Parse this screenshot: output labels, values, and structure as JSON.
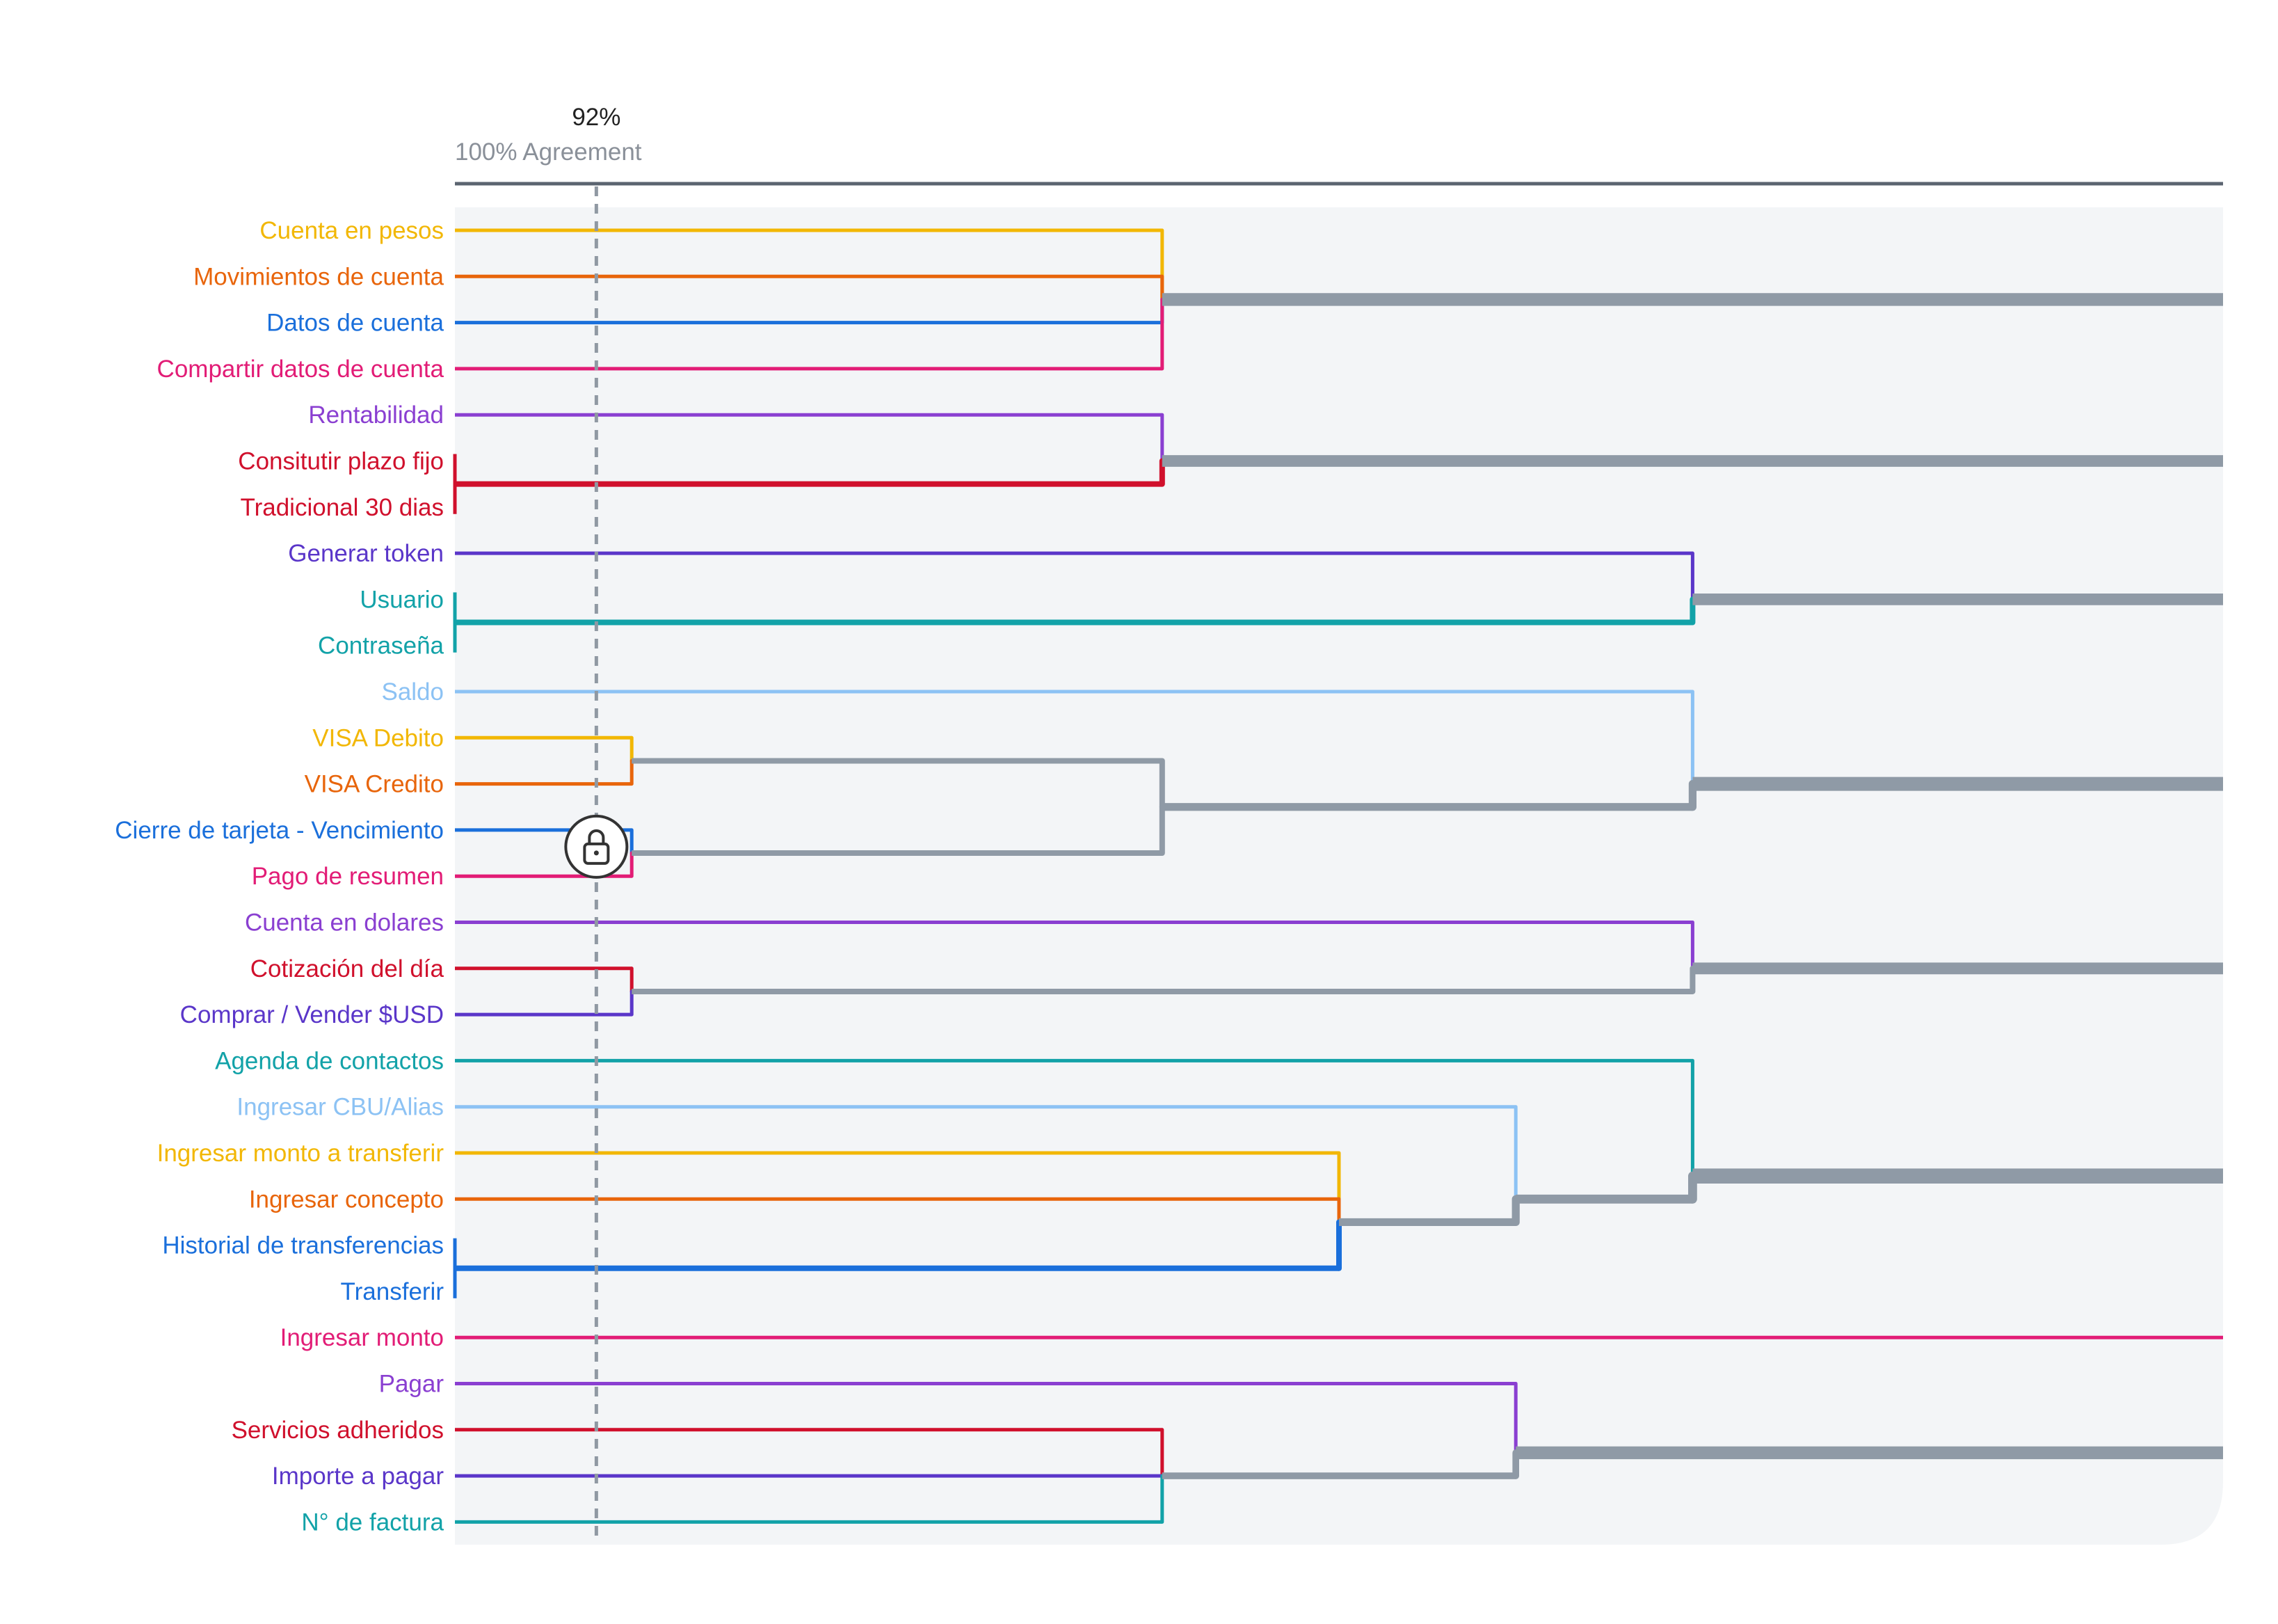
{
  "header": {
    "threshold_label": "92%",
    "axis_label": "100% Agreement"
  },
  "colors": {
    "yellow": "#F2B705",
    "orange": "#E8650B",
    "blue": "#1A6FDB",
    "pink": "#E21C76",
    "purple": "#8A3FD1",
    "red": "#D0102C",
    "indigo": "#5A36C9",
    "teal": "#12A2A8",
    "lightblue": "#8CC2F4",
    "cluster": "#8F9AA6",
    "axis": "#5B6470",
    "panel": "#F3F5F7",
    "threshold": "#9099A3"
  },
  "chart_data": {
    "type": "dendrogram",
    "leaves": [
      {
        "id": "l1",
        "label": "Cuenta en pesos",
        "color": "yellow"
      },
      {
        "id": "l2",
        "label": "Movimientos de cuenta",
        "color": "orange"
      },
      {
        "id": "l3",
        "label": "Datos de cuenta",
        "color": "blue"
      },
      {
        "id": "l4",
        "label": "Compartir datos de cuenta",
        "color": "pink"
      },
      {
        "id": "l5",
        "label": "Rentabilidad",
        "color": "purple"
      },
      {
        "id": "l6",
        "label": "Consitutir plazo fijo",
        "color": "red"
      },
      {
        "id": "l7",
        "label": "Tradicional 30 dias",
        "color": "red"
      },
      {
        "id": "l8",
        "label": "Generar token",
        "color": "indigo"
      },
      {
        "id": "l9",
        "label": "Usuario",
        "color": "teal"
      },
      {
        "id": "l10",
        "label": "Contraseña",
        "color": "teal"
      },
      {
        "id": "l11",
        "label": "Saldo",
        "color": "lightblue"
      },
      {
        "id": "l12",
        "label": "VISA Debito",
        "color": "yellow"
      },
      {
        "id": "l13",
        "label": "VISA Credito",
        "color": "orange"
      },
      {
        "id": "l14",
        "label": "Cierre de tarjeta - Vencimiento",
        "color": "blue"
      },
      {
        "id": "l15",
        "label": "Pago de resumen",
        "color": "pink"
      },
      {
        "id": "l16",
        "label": "Cuenta en dolares",
        "color": "purple"
      },
      {
        "id": "l17",
        "label": "Cotización del día",
        "color": "red"
      },
      {
        "id": "l18",
        "label": "Comprar / Vender $USD",
        "color": "indigo"
      },
      {
        "id": "l19",
        "label": "Agenda de contactos",
        "color": "teal"
      },
      {
        "id": "l20",
        "label": "Ingresar CBU/Alias",
        "color": "lightblue"
      },
      {
        "id": "l21",
        "label": "Ingresar monto a transferir",
        "color": "yellow"
      },
      {
        "id": "l22",
        "label": "Ingresar concepto",
        "color": "orange"
      },
      {
        "id": "l23",
        "label": "Historial de transferencias",
        "color": "blue"
      },
      {
        "id": "l24",
        "label": "Transferir",
        "color": "blue"
      },
      {
        "id": "l25",
        "label": "Ingresar monto",
        "color": "pink"
      },
      {
        "id": "l26",
        "label": "Pagar",
        "color": "purple"
      },
      {
        "id": "l27",
        "label": "Servicios adheridos",
        "color": "red"
      },
      {
        "id": "l28",
        "label": "Importe a pagar",
        "color": "indigo"
      },
      {
        "id": "l29",
        "label": "N° de factura",
        "color": "teal"
      }
    ],
    "clusters": [
      {
        "id": "c1",
        "agreement": 100,
        "children": [
          "l6",
          "l7"
        ]
      },
      {
        "id": "c2",
        "agreement": 100,
        "children": [
          "l9",
          "l10"
        ]
      },
      {
        "id": "c3",
        "agreement": 100,
        "children": [
          "l23",
          "l24"
        ]
      },
      {
        "id": "c4",
        "agreement": 90,
        "children": [
          "l12",
          "l13"
        ]
      },
      {
        "id": "c5",
        "agreement": 90,
        "children": [
          "l14",
          "l15"
        ]
      },
      {
        "id": "c6",
        "agreement": 90,
        "children": [
          "l17",
          "l18"
        ]
      },
      {
        "id": "c7",
        "agreement": 60,
        "children": [
          "l1",
          "l2",
          "l3",
          "l4"
        ]
      },
      {
        "id": "c8",
        "agreement": 60,
        "children": [
          "l5",
          "c1"
        ]
      },
      {
        "id": "c9",
        "agreement": 60,
        "children": [
          "c4",
          "c5"
        ]
      },
      {
        "id": "c10",
        "agreement": 60,
        "children": [
          "l27",
          "l28",
          "l29"
        ]
      },
      {
        "id": "c11",
        "agreement": 50,
        "children": [
          "l21",
          "l22",
          "c3"
        ]
      },
      {
        "id": "c12",
        "agreement": 40,
        "children": [
          "l20",
          "c11"
        ]
      },
      {
        "id": "c13",
        "agreement": 40,
        "children": [
          "l26",
          "c10"
        ]
      },
      {
        "id": "c14",
        "agreement": 30,
        "children": [
          "l8",
          "c2"
        ]
      },
      {
        "id": "c15",
        "agreement": 30,
        "children": [
          "l11",
          "c9"
        ]
      },
      {
        "id": "c16",
        "agreement": 30,
        "children": [
          "l16",
          "c6"
        ]
      },
      {
        "id": "c17",
        "agreement": 30,
        "children": [
          "l19",
          "c12"
        ]
      }
    ],
    "roots": [
      "c7",
      "c8",
      "c14",
      "c15",
      "c16",
      "c17",
      "l25",
      "c13"
    ],
    "threshold": 92,
    "x_axis": {
      "max": 100,
      "min": 0
    }
  }
}
